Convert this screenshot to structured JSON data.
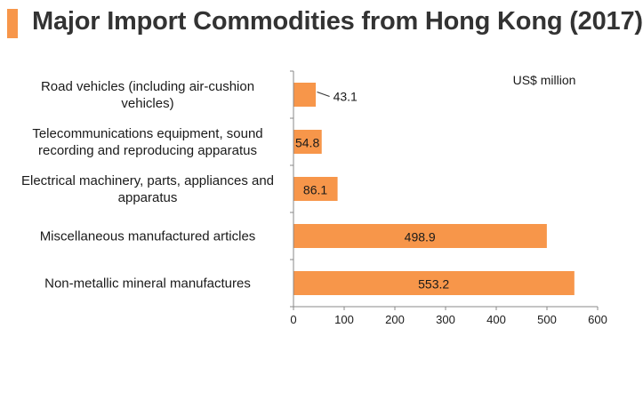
{
  "header": {
    "title": "Major Import Commodities from Hong Kong (2017)"
  },
  "chart_data": {
    "type": "bar",
    "orientation": "horizontal",
    "unit_label": "US$ million",
    "categories": [
      [
        "Road vehicles (including air-cushion",
        "vehicles)"
      ],
      [
        "Telecommunications equipment, sound",
        "recording and reproducing apparatus"
      ],
      [
        "Electrical machinery, parts, appliances and",
        "apparatus"
      ],
      [
        "Miscellaneous manufactured articles"
      ],
      [
        "Non-metallic mineral manufactures"
      ]
    ],
    "values": [
      43.1,
      54.8,
      86.1,
      498.9,
      553.2
    ],
    "value_labels": [
      "43.1",
      "54.8",
      "86.1",
      "498.9",
      "553.2"
    ],
    "xlim": [
      0,
      600
    ],
    "xticks": [
      0,
      100,
      200,
      300,
      400,
      500,
      600
    ],
    "grid": false,
    "colors": {
      "bar": "#f7964a",
      "axis": "#888888",
      "title_accent": "#f7964a"
    }
  }
}
